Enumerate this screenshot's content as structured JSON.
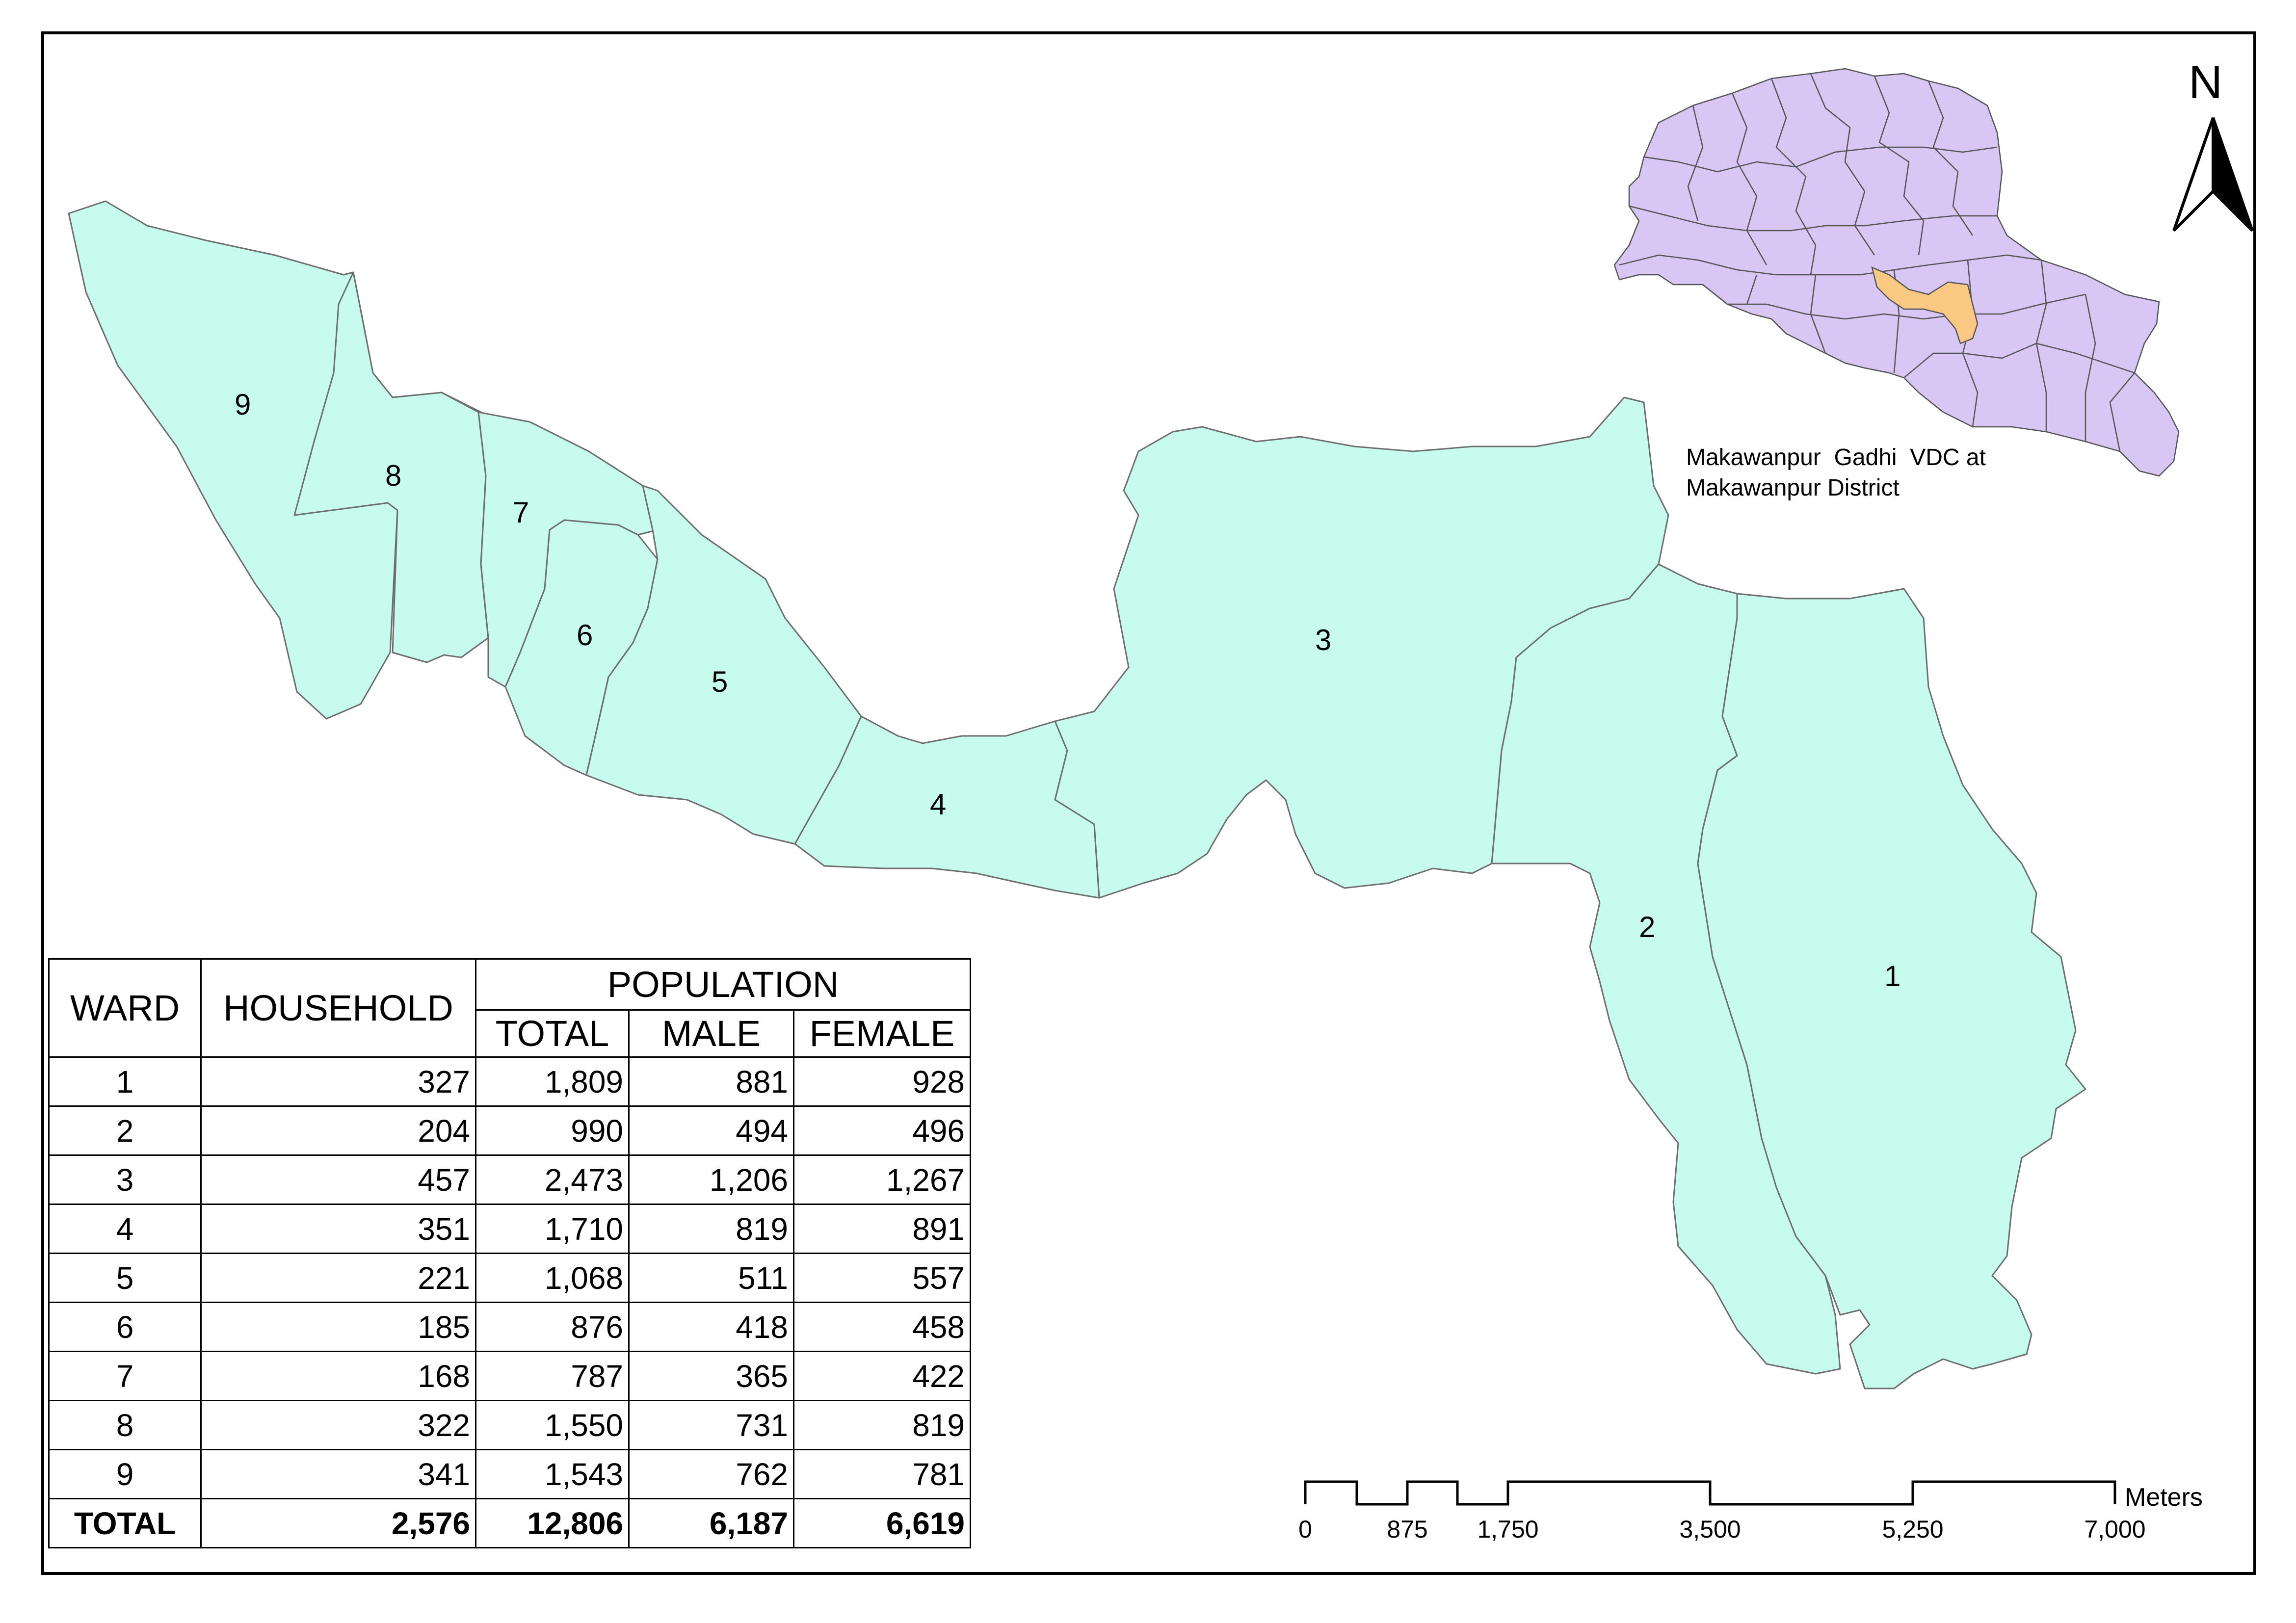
{
  "wards": [
    {
      "id": "9",
      "label": "9"
    },
    {
      "id": "8",
      "label": "8"
    },
    {
      "id": "7",
      "label": "7"
    },
    {
      "id": "6",
      "label": "6"
    },
    {
      "id": "5",
      "label": "5"
    },
    {
      "id": "4",
      "label": "4"
    },
    {
      "id": "3",
      "label": "3"
    },
    {
      "id": "2",
      "label": "2"
    },
    {
      "id": "1",
      "label": "1"
    }
  ],
  "colors": {
    "ward_fill": "#c6fbee",
    "district_fill": "#d8c6f5",
    "vdc_highlight": "#f9c883"
  },
  "inset": {
    "caption_line1": "Makawanpur  Gadhi  VDC at",
    "caption_line2": "Makawanpur District"
  },
  "north_arrow": {
    "letter": "N",
    "icon": "north-arrow-icon"
  },
  "table": {
    "headers": {
      "ward": "WARD",
      "household": "HOUSEHOLD",
      "population": "POPULATION",
      "total": "TOTAL",
      "male": "MALE",
      "female": "FEMALE"
    },
    "rows": [
      {
        "ward": "1",
        "household": "327",
        "total": "1,809",
        "male": "881",
        "female": "928"
      },
      {
        "ward": "2",
        "household": "204",
        "total": "990",
        "male": "494",
        "female": "496"
      },
      {
        "ward": "3",
        "household": "457",
        "total": "2,473",
        "male": "1,206",
        "female": "1,267"
      },
      {
        "ward": "4",
        "household": "351",
        "total": "1,710",
        "male": "819",
        "female": "891"
      },
      {
        "ward": "5",
        "household": "221",
        "total": "1,068",
        "male": "511",
        "female": "557"
      },
      {
        "ward": "6",
        "household": "185",
        "total": "876",
        "male": "418",
        "female": "458"
      },
      {
        "ward": "7",
        "household": "168",
        "total": "787",
        "male": "365",
        "female": "422"
      },
      {
        "ward": "8",
        "household": "322",
        "total": "1,550",
        "male": "731",
        "female": "819"
      },
      {
        "ward": "9",
        "household": "341",
        "total": "1,543",
        "male": "762",
        "female": "781"
      }
    ],
    "totals": {
      "ward": "TOTAL",
      "household": "2,576",
      "total": "12,806",
      "male": "6,187",
      "female": "6,619"
    }
  },
  "scale_bar": {
    "units": "Meters",
    "ticks": [
      "0",
      "875",
      "1,750",
      "3,500",
      "5,250",
      "7,000"
    ]
  }
}
